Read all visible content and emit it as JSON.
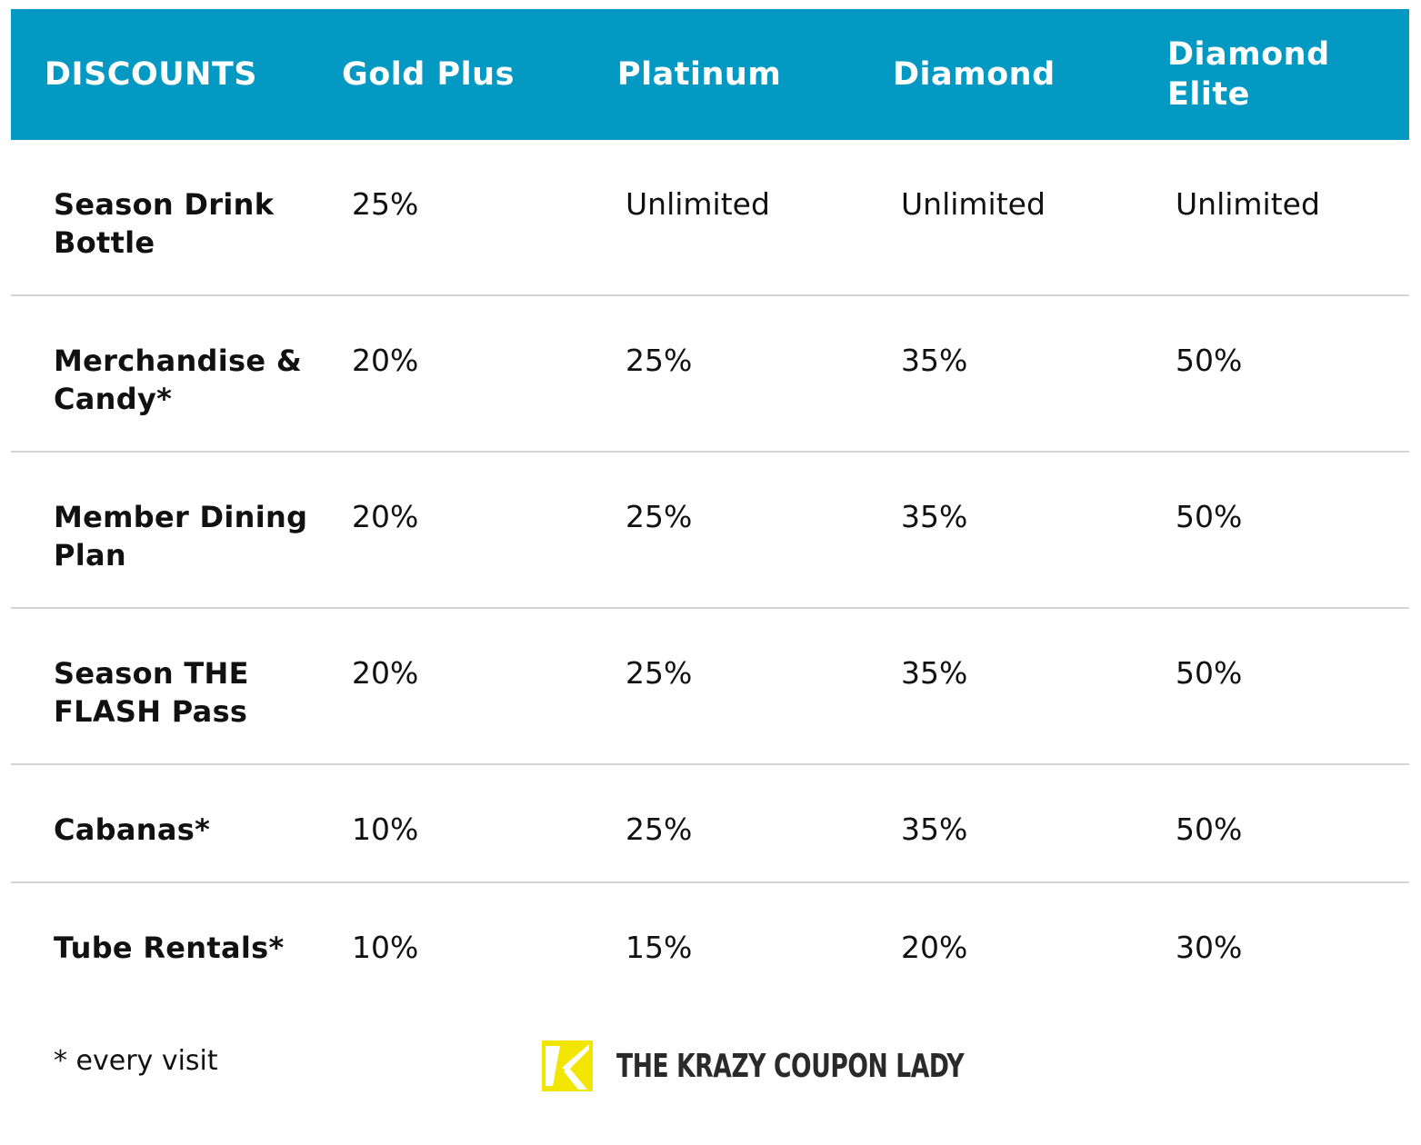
{
  "header": {
    "col0": "DISCOUNTS",
    "col1": "Gold Plus",
    "col2": "Platinum",
    "col3": "Diamond",
    "col4": "Diamond Elite"
  },
  "rows": [
    {
      "label": "Season Drink Bottle",
      "v1": "25%",
      "v2": "Unlimited",
      "v3": "Unlimited",
      "v4": "Unlimited"
    },
    {
      "label": "Merchandise & Candy*",
      "v1": "20%",
      "v2": "25%",
      "v3": "35%",
      "v4": "50%"
    },
    {
      "label": "Member Dining Plan",
      "v1": "20%",
      "v2": "25%",
      "v3": "35%",
      "v4": "50%"
    },
    {
      "label": "Season THE FLASH Pass",
      "v1": "20%",
      "v2": "25%",
      "v3": "35%",
      "v4": "50%"
    },
    {
      "label": "Cabanas*",
      "v1": "10%",
      "v2": "25%",
      "v3": "35%",
      "v4": "50%"
    },
    {
      "label": "Tube Rentals*",
      "v1": "10%",
      "v2": "15%",
      "v3": "20%",
      "v4": "30%"
    }
  ],
  "footnote": "* every visit",
  "logo": {
    "text": "THE KRAZY COUPON LADY",
    "icon": "krazy-coupon-lady-k-logo",
    "mark_color": "#f2e600"
  },
  "colors": {
    "header_bg": "#0399c3",
    "header_text": "#ffffff",
    "divider": "#d4d4d4"
  }
}
